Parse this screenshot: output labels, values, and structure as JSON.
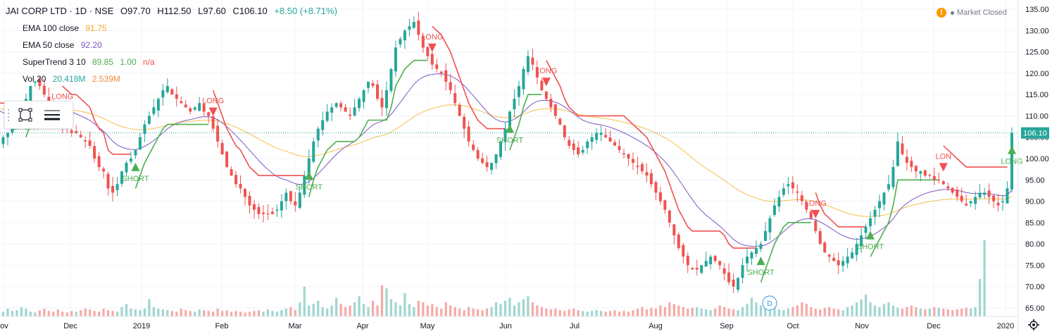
{
  "header": {
    "title": "JAI CORP LTD · 1D · NSE",
    "open_label": "O",
    "open": "97.70",
    "high_label": "H",
    "high": "112.50",
    "low_label": "L",
    "low": "97.60",
    "close_label": "C",
    "close": "106.10",
    "change": "+8.50 (+8.71%)"
  },
  "indicators": {
    "ema100": {
      "label": "EMA 100 close",
      "value": "91.75",
      "color": "#f5a623"
    },
    "ema50": {
      "label": "EMA 50 close",
      "value": "92.20",
      "color": "#7e57c2"
    },
    "supertrend": {
      "label": "SuperTrend 3 10",
      "v1": "89.85",
      "v2": "1.00",
      "v3": "n/a"
    },
    "vol": {
      "label": "Vol 20",
      "v1": "20.418M",
      "v2": "2.539M"
    }
  },
  "status": {
    "market": "Market Closed",
    "warning_glyph": "!"
  },
  "price_marker": "106.10",
  "colors": {
    "up": "#26a69a",
    "down": "#ef5350",
    "supertrend_up": "#4caf50",
    "supertrend_down": "#f05050",
    "ema100": "#f5c04a",
    "ema50": "#7e57c2",
    "vol_up": "#9fd6cf",
    "vol_down": "#f7a9a7"
  },
  "chart_data": {
    "type": "candlestick",
    "y_axis": {
      "ticks": [
        65,
        70,
        75,
        80,
        85,
        90,
        95,
        100,
        105,
        110,
        115,
        120,
        125,
        130,
        135
      ],
      "range": [
        63,
        136.5
      ]
    },
    "x_axis": {
      "labels": [
        "ov",
        "Dec",
        "2019",
        "Feb",
        "Mar",
        "Apr",
        "May",
        "Jun",
        "Jul",
        "Aug",
        "Sep",
        "Oct",
        "Nov",
        "Dec",
        "2020"
      ]
    },
    "signals": [
      {
        "type": "SHORT",
        "label": "SHORT"
      },
      {
        "type": "LONG",
        "label": "LONG"
      },
      {
        "type": "SHORT",
        "label": "SHORT"
      },
      {
        "type": "LONG",
        "label": "LONG"
      },
      {
        "type": "SHORT",
        "label": "SHORT"
      },
      {
        "type": "LONG",
        "label": "LONG"
      },
      {
        "type": "SHORT",
        "label": "SHORT"
      },
      {
        "type": "LONG",
        "label": "LONG"
      },
      {
        "type": "SHORT",
        "label": "SHORT"
      },
      {
        "type": "LONG",
        "label": "LONG"
      },
      {
        "type": "SHORT",
        "label": "SHORT"
      },
      {
        "type": "LONG",
        "label": "LON"
      }
    ],
    "closes": [
      104,
      105,
      106,
      108,
      110,
      112,
      114,
      117,
      118,
      117,
      115,
      113,
      111,
      110,
      108,
      107,
      106,
      106,
      105,
      104,
      103,
      100,
      98,
      97,
      93,
      92,
      94,
      97,
      99,
      100,
      102,
      105,
      108,
      110,
      112,
      114,
      116,
      117,
      115,
      114,
      113,
      112,
      111,
      112,
      113,
      111,
      110,
      107,
      104,
      101,
      98,
      96,
      94,
      93,
      91,
      89,
      88,
      87,
      87,
      87,
      87,
      88,
      90,
      92,
      90,
      89,
      92,
      96,
      100,
      104,
      107,
      109,
      111,
      112,
      113,
      112,
      111,
      110,
      112,
      114,
      116,
      118,
      117,
      114,
      112,
      116,
      121,
      126,
      128,
      130,
      131,
      132,
      129,
      126,
      124,
      122,
      121,
      120,
      118,
      116,
      113,
      110,
      107,
      104,
      102,
      100,
      99,
      98,
      99,
      101,
      104,
      107,
      111,
      114,
      117,
      121,
      124,
      122,
      119,
      116,
      114,
      112,
      110,
      108,
      105,
      103,
      102,
      101,
      102,
      104,
      105,
      106,
      106,
      105,
      104,
      103,
      102,
      101,
      100,
      99,
      98,
      97,
      96,
      94,
      92,
      90,
      88,
      85,
      82,
      79,
      77,
      75,
      74,
      74,
      75,
      76,
      77,
      76,
      75,
      73,
      71,
      70,
      72,
      75,
      77,
      78,
      79,
      80,
      83,
      86,
      89,
      91,
      93,
      94,
      93,
      92,
      90,
      88,
      86,
      83,
      80,
      78,
      77,
      76,
      75,
      76,
      77,
      78,
      80,
      82,
      84,
      86,
      88,
      90,
      92,
      94,
      98,
      104,
      101,
      99,
      98,
      97,
      97,
      96,
      96,
      95,
      95,
      94,
      93,
      92,
      91,
      90,
      89,
      90,
      91,
      92,
      92,
      91,
      90,
      89,
      90,
      93,
      106
    ],
    "volumes": [
      0.45,
      0.3,
      0.5,
      0.35,
      0.4,
      0.6,
      0.5,
      0.3,
      0.25,
      0.4,
      0.5,
      0.35,
      0.3,
      0.45,
      0.3,
      0.25,
      0.35,
      0.3,
      0.4,
      0.5,
      0.45,
      0.35,
      0.3,
      0.5,
      0.4,
      0.35,
      0.3,
      0.6,
      0.8,
      0.5,
      0.45,
      0.4,
      0.5,
      1.1,
      0.6,
      0.5,
      0.45,
      0.4,
      0.35,
      0.3,
      0.5,
      0.4,
      0.35,
      0.3,
      0.45,
      0.4,
      0.35,
      0.3,
      0.5,
      0.35,
      0.4,
      0.3,
      0.35,
      0.3,
      0.25,
      0.3,
      0.35,
      0.4,
      0.3,
      0.45,
      0.35,
      0.3,
      0.4,
      0.5,
      0.6,
      0.4,
      0.9,
      1.9,
      0.7,
      0.8,
      1.0,
      0.6,
      0.5,
      0.7,
      1.2,
      0.8,
      0.6,
      0.7,
      0.9,
      1.3,
      0.8,
      0.6,
      1.0,
      0.7,
      2.0,
      1.8,
      1.1,
      0.9,
      0.7,
      1.5,
      0.8,
      0.6,
      1.0,
      0.9,
      0.7,
      0.8,
      0.6,
      0.5,
      0.9,
      0.7,
      0.6,
      0.5,
      0.4,
      0.6,
      0.5,
      0.45,
      0.4,
      0.5,
      0.6,
      0.9,
      0.8,
      1.0,
      1.2,
      0.7,
      0.9,
      1.1,
      1.3,
      0.9,
      0.7,
      0.6,
      0.5,
      0.45,
      0.5,
      0.4,
      0.35,
      0.45,
      0.5,
      0.4,
      0.35,
      0.3,
      0.35,
      0.4,
      0.35,
      0.3,
      0.35,
      0.4,
      0.3,
      0.35,
      0.3,
      0.4,
      0.5,
      0.6,
      0.45,
      0.55,
      0.5,
      0.7,
      0.6,
      0.9,
      0.8,
      0.7,
      0.6,
      0.5,
      0.55,
      0.6,
      0.5,
      0.45,
      0.4,
      0.5,
      0.7,
      0.6,
      0.5,
      0.45,
      0.4,
      0.6,
      0.8,
      1.2,
      0.9,
      0.7,
      0.6,
      0.5,
      0.55,
      0.45,
      0.4,
      0.5,
      0.6,
      0.7,
      0.9,
      0.8,
      0.6,
      0.5,
      0.45,
      0.55,
      0.6,
      0.5,
      0.45,
      0.4,
      0.6,
      0.7,
      0.9,
      1.1,
      1.4,
      0.9,
      0.7,
      0.6,
      0.8,
      0.9,
      0.7,
      0.55,
      0.5,
      0.6,
      0.7,
      0.6,
      0.5,
      0.45,
      0.5,
      0.6,
      0.55,
      0.5,
      0.45,
      0.4,
      0.45,
      0.5,
      0.55,
      0.5,
      0.6,
      2.4,
      4.9
    ]
  }
}
